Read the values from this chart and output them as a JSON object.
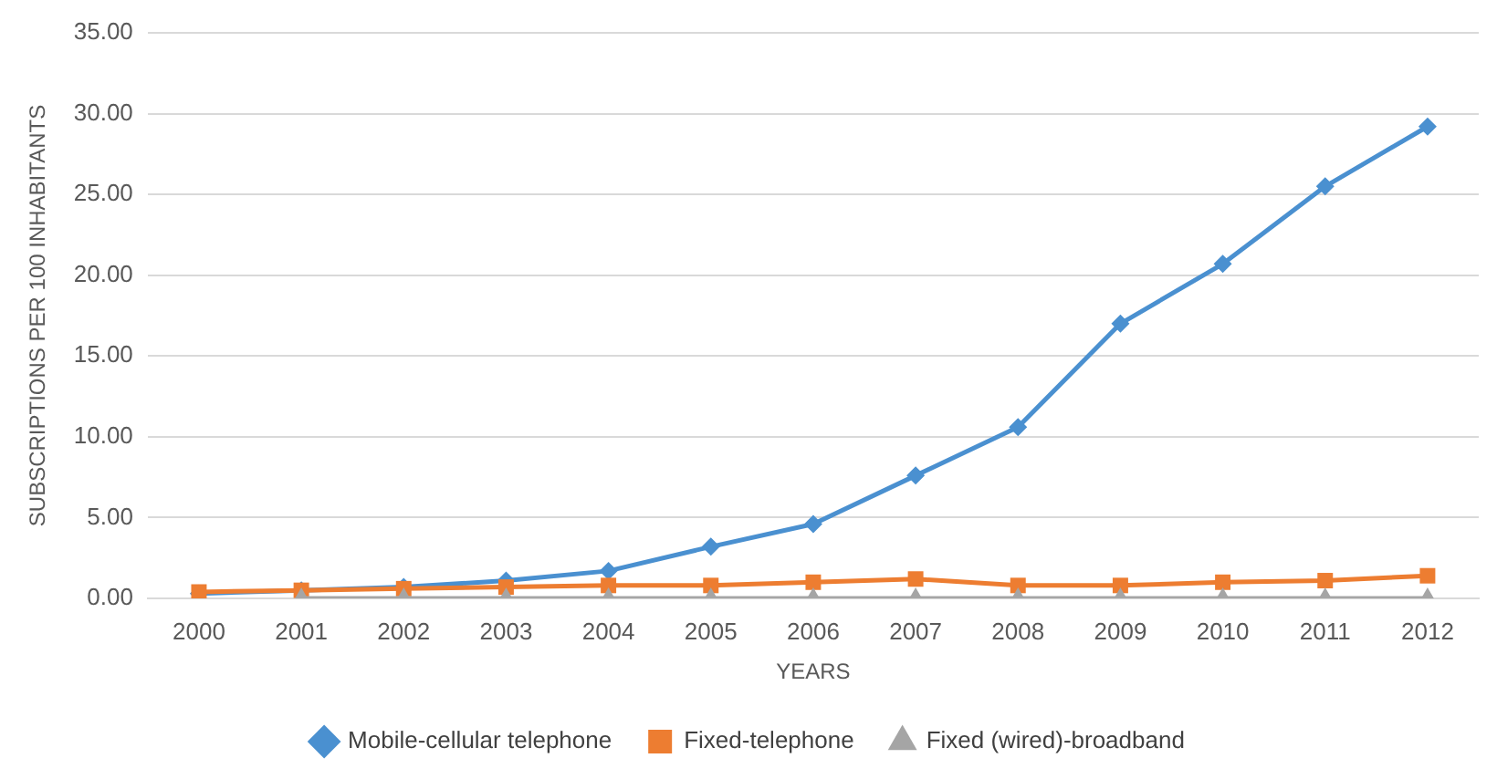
{
  "chart_data": {
    "type": "line",
    "xlabel": "YEARS",
    "ylabel": "SUBSCRIPTIONS PER 100 INHABITANTS",
    "categories": [
      "2000",
      "2001",
      "2002",
      "2003",
      "2004",
      "2005",
      "2006",
      "2007",
      "2008",
      "2009",
      "2010",
      "2011",
      "2012"
    ],
    "series": [
      {
        "name": "Mobile-cellular telephone",
        "color": "#4a90d0",
        "marker": "diamond",
        "values": [
          0.3,
          0.5,
          0.7,
          1.1,
          1.7,
          3.2,
          4.6,
          7.6,
          10.6,
          17.0,
          20.7,
          25.5,
          29.2
        ]
      },
      {
        "name": "Fixed-telephone",
        "color": "#ed7d31",
        "marker": "square",
        "values": [
          0.4,
          0.5,
          0.6,
          0.7,
          0.8,
          0.8,
          1.0,
          1.2,
          0.8,
          0.8,
          1.0,
          1.1,
          1.4
        ]
      },
      {
        "name": "Fixed (wired)-broadband",
        "color": "#a5a5a5",
        "marker": "triangle",
        "values": [
          null,
          0,
          0,
          0,
          0,
          0,
          0,
          0,
          0,
          0,
          0,
          0,
          0
        ]
      }
    ],
    "ylim": [
      0,
      35
    ],
    "yticks": [
      {
        "value": 0,
        "label": "0.00"
      },
      {
        "value": 5,
        "label": "5.00"
      },
      {
        "value": 10,
        "label": "10.00"
      },
      {
        "value": 15,
        "label": "15.00"
      },
      {
        "value": 20,
        "label": "20.00"
      },
      {
        "value": 25,
        "label": "25.00"
      },
      {
        "value": 30,
        "label": "30.00"
      },
      {
        "value": 35,
        "label": "35.00"
      }
    ],
    "grid": "y",
    "legend": "bottom",
    "line_style": "solid"
  }
}
